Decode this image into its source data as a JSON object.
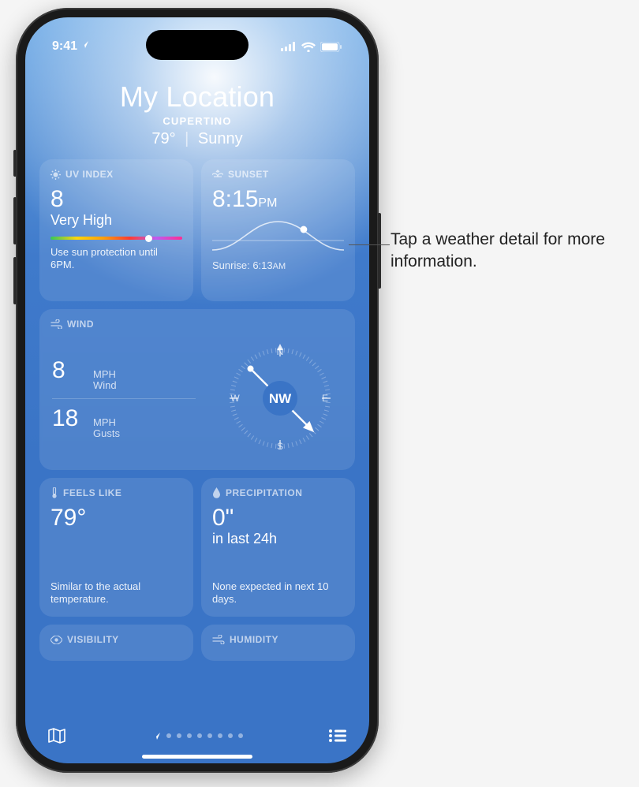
{
  "status": {
    "time": "9:41",
    "loc_arrow": true
  },
  "header": {
    "title": "My Location",
    "subtitle": "CUPERTINO",
    "temp": "79°",
    "divider": "|",
    "condition": "Sunny"
  },
  "uv": {
    "label": "UV INDEX",
    "value": "8",
    "level": "Very High",
    "note": "Use sun protection until 6PM.",
    "gradient": [
      "#35c759",
      "#ffd60a",
      "#ff9f0a",
      "#ff3b30",
      "#bf5af2",
      "#ff2d92"
    ],
    "marker_pct": 72
  },
  "sunset": {
    "label": "SUNSET",
    "time": "8:15",
    "ampm": "PM",
    "sunrise_label": "Sunrise:",
    "sunrise_time": "6:13",
    "sunrise_ampm": "AM"
  },
  "wind": {
    "label": "WIND",
    "speed": "8",
    "speed_unit": "MPH",
    "speed_label": "Wind",
    "gusts": "18",
    "gusts_unit": "MPH",
    "gusts_label": "Gusts",
    "direction": "NW",
    "compass": {
      "N": "N",
      "E": "E",
      "S": "S",
      "W": "W"
    }
  },
  "feels": {
    "label": "FEELS LIKE",
    "value": "79°",
    "note": "Similar to the actual temperature."
  },
  "precip": {
    "label": "PRECIPITATION",
    "value": "0\"",
    "period": "in last 24h",
    "note": "None expected in next 10 days."
  },
  "visibility": {
    "label": "VISIBILITY"
  },
  "humidity": {
    "label": "HUMIDITY"
  },
  "pager": {
    "count": 9,
    "active": 0
  },
  "callout": "Tap a weather detail for more information.",
  "colors": {
    "card_bg": "rgba(255,255,255,0.10)",
    "label": "rgba(255,255,255,0.65)",
    "text": "#ffffff"
  }
}
